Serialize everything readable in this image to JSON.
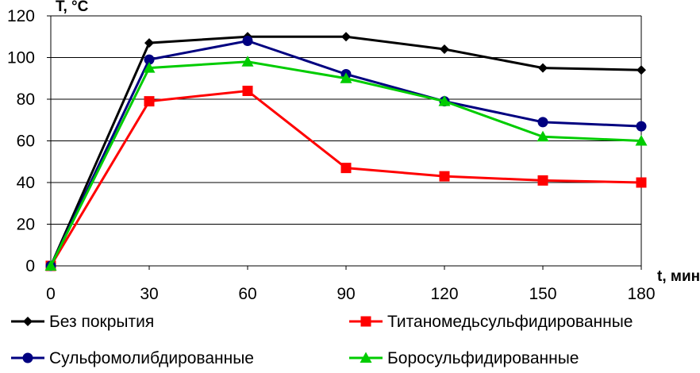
{
  "chart_data": {
    "type": "line",
    "title": "",
    "xlabel": "t, мин.",
    "ylabel": "T, °C",
    "x": [
      0,
      30,
      60,
      90,
      120,
      150,
      180
    ],
    "xlim": [
      0,
      180
    ],
    "ylim": [
      0,
      120
    ],
    "x_ticks": [
      "0",
      "30",
      "60",
      "90",
      "120",
      "150",
      "180"
    ],
    "y_ticks": [
      "0",
      "20",
      "40",
      "60",
      "80",
      "100",
      "120"
    ],
    "grid": "horizontal",
    "legend_position": "bottom",
    "series": [
      {
        "name": "Без покрытия",
        "values": [
          0,
          107,
          110,
          110,
          104,
          95,
          94
        ],
        "color": "#000000",
        "marker": "diamond"
      },
      {
        "name": "Титаномедьсульфидированные",
        "values": [
          0,
          79,
          84,
          47,
          43,
          41,
          40
        ],
        "color": "#ff0000",
        "marker": "square"
      },
      {
        "name": "Сульфомолибдированные",
        "values": [
          0,
          99,
          108,
          92,
          79,
          69,
          67
        ],
        "color": "#000080",
        "marker": "circle"
      },
      {
        "name": "Боросульфидированные",
        "values": [
          0,
          95,
          98,
          90,
          79,
          62,
          60
        ],
        "color": "#00cc00",
        "marker": "triangle"
      }
    ]
  }
}
